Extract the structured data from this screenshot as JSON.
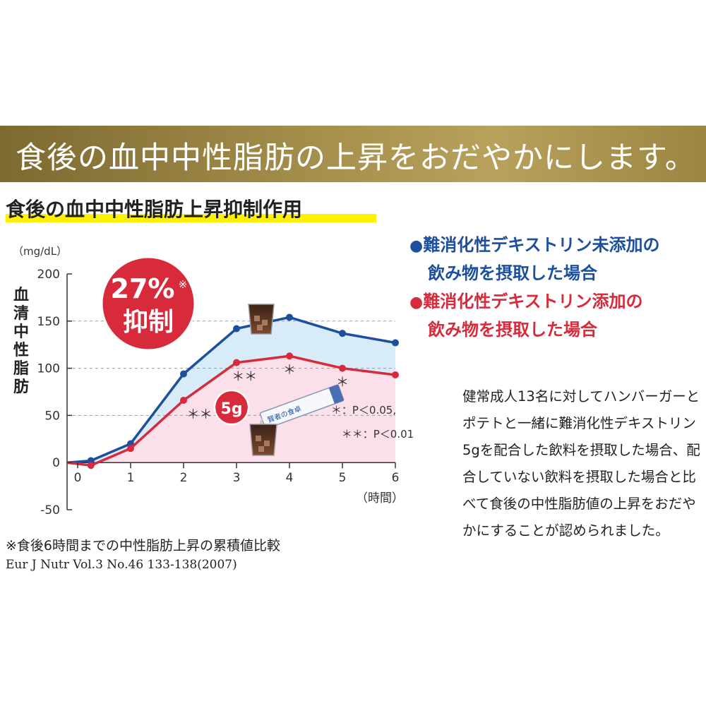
{
  "banner": {
    "text": "食後の血中中性脂肪の上昇をおだやかにします。"
  },
  "subtitle": {
    "text": "食後の血中中性脂肪上昇抑制作用"
  },
  "legend": {
    "blue_line1": "難消化性デキストリン未添加の",
    "blue_line2": "飲み物を摂取した場合",
    "red_line1": "難消化性デキストリン添加の",
    "red_line2": "飲み物を摂取した場合",
    "bullet": "●"
  },
  "badge": {
    "percent": "27%",
    "mark": "※",
    "label": "抑制"
  },
  "drink_badge": {
    "text": "5g"
  },
  "packet": {
    "text": "賢者の食卓"
  },
  "significance": {
    "single": "＊：P＜0.05,",
    "double": "＊＊：P＜0.01"
  },
  "description": "健常成人13名に対してハンバーガーとポテトと一緒に難消化性デキストリン5gを配合した飲料を摂取した場合、配合していない飲料を摂取した場合と比べて食後の中性脂肪値の上昇をおだやかにすることが認められました。",
  "footnote": "※食後6時間までの中性脂肪上昇の累積値比較",
  "citation": "Eur J Nutr Vol.3 No.46 133-138(2007)",
  "colors": {
    "blue": "#1d4f9f",
    "red": "#d72b3c",
    "blue_fill": "#d8ebf8",
    "pink_fill": "#fbe0ea",
    "gold": "#a58f4c"
  },
  "chart_data": {
    "type": "line",
    "yunit": "（mg/dL）",
    "ylabel": "血清中性脂肪",
    "xunit": "（時間）",
    "ylim": [
      -50,
      200
    ],
    "xlim": [
      -0.2,
      6
    ],
    "yticks": [
      200,
      150,
      100,
      50,
      0,
      -50
    ],
    "xticks": [
      0,
      1,
      2,
      3,
      4,
      5,
      6
    ],
    "gridlines_dashed": [
      150,
      100,
      50
    ],
    "series": [
      {
        "color": "blue",
        "x": [
          -0.2,
          0.25,
          1,
          2,
          3,
          4,
          5,
          6
        ],
        "y": [
          0,
          2,
          20,
          94,
          142,
          154,
          137,
          127
        ]
      },
      {
        "color": "red",
        "x": [
          -0.2,
          0.25,
          1,
          2,
          3,
          4,
          5,
          6
        ],
        "y": [
          0,
          -3,
          15,
          66,
          106,
          113,
          100,
          93
        ]
      }
    ],
    "annotations": [
      {
        "text": "＊＊",
        "x": 2.3,
        "y": 66
      },
      {
        "text": "＊＊",
        "x": 3.15,
        "y": 106
      },
      {
        "text": "＊",
        "x": 4,
        "y": 113
      },
      {
        "text": "＊",
        "x": 5,
        "y": 100
      }
    ]
  }
}
